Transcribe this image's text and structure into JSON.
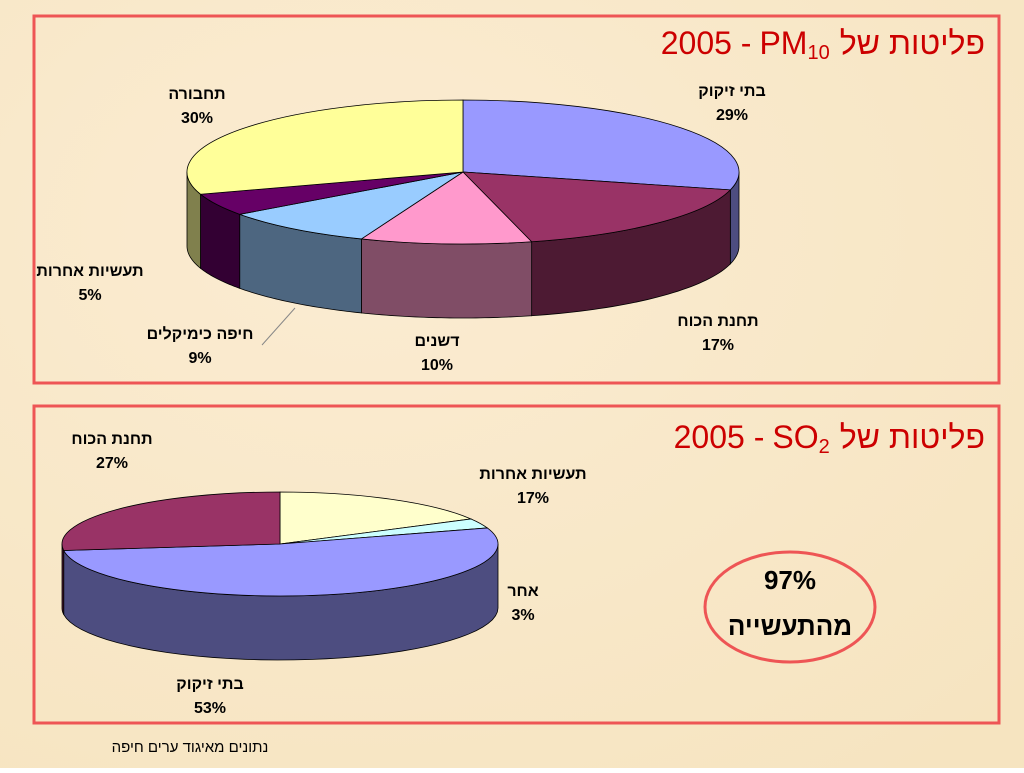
{
  "chart_data": [
    {
      "type": "pie3d",
      "title_parts": [
        "2005 -",
        "PM",
        "10",
        "פליטות של"
      ],
      "categories": [
        "בתי זיקוק",
        "תחנת הכוח",
        "דשנים",
        "חיפה כימיקלים",
        "תעשיות אחרות",
        "תחבורה"
      ],
      "values": [
        29,
        17,
        10,
        9,
        5,
        30
      ],
      "value_labels": [
        "29%",
        "17%",
        "10%",
        "9%",
        "5%",
        "30%"
      ],
      "colors": [
        "#9999ff",
        "#993366",
        "#ff99cc",
        "#99ccff",
        "#660066",
        "#ffff99"
      ]
    },
    {
      "type": "pie3d",
      "title_parts": [
        "2005 -",
        "SO",
        "2",
        "פליטות של"
      ],
      "categories": [
        "תעשיות אחרות",
        "אחר",
        "בתי זיקוק",
        "תחנת הכוח"
      ],
      "values": [
        17,
        3,
        53,
        27
      ],
      "value_labels": [
        "17%",
        "3%",
        "53%",
        "27%"
      ],
      "colors": [
        "#ffffcc",
        "#ccffff",
        "#9999ff",
        "#993366"
      ]
    }
  ],
  "annotation": {
    "value": "97%",
    "text": "מהתעשייה"
  },
  "footer": "נתונים מאיגוד ערים חיפה"
}
